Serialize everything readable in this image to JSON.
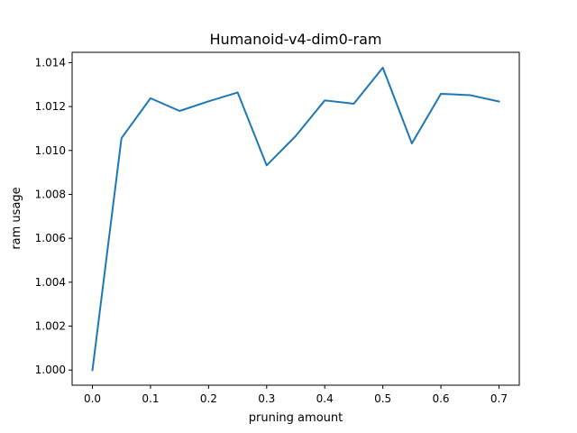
{
  "chart_data": {
    "type": "line",
    "title": "Humanoid-v4-dim0-ram",
    "xlabel": "pruning amount",
    "ylabel": "ram usage",
    "x": [
      0.0,
      0.05,
      0.1,
      0.15,
      0.2,
      0.25,
      0.3,
      0.35,
      0.4,
      0.45,
      0.5,
      0.55,
      0.6,
      0.65,
      0.7
    ],
    "series": [
      {
        "color": "#1f77b4",
        "values": [
          1.0,
          1.01056,
          1.01238,
          1.0118,
          1.01224,
          1.01264,
          1.00932,
          1.01066,
          1.01228,
          1.01213,
          1.01377,
          1.01032,
          1.01258,
          1.01252,
          1.01223
        ]
      }
    ],
    "xlim": [
      -0.035,
      0.735
    ],
    "ylim": [
      0.99931,
      1.01447
    ],
    "xticks": [
      {
        "value": 0.0,
        "label": "0.0"
      },
      {
        "value": 0.1,
        "label": "0.1"
      },
      {
        "value": 0.2,
        "label": "0.2"
      },
      {
        "value": 0.3,
        "label": "0.3"
      },
      {
        "value": 0.4,
        "label": "0.4"
      },
      {
        "value": 0.5,
        "label": "0.5"
      },
      {
        "value": 0.6,
        "label": "0.6"
      },
      {
        "value": 0.7,
        "label": "0.7"
      }
    ],
    "yticks": [
      {
        "value": 1.0,
        "label": "1.000"
      },
      {
        "value": 1.002,
        "label": "1.002"
      },
      {
        "value": 1.004,
        "label": "1.004"
      },
      {
        "value": 1.006,
        "label": "1.006"
      },
      {
        "value": 1.008,
        "label": "1.008"
      },
      {
        "value": 1.01,
        "label": "1.010"
      },
      {
        "value": 1.012,
        "label": "1.012"
      },
      {
        "value": 1.014,
        "label": "1.014"
      }
    ],
    "grid": false,
    "legend": false
  }
}
